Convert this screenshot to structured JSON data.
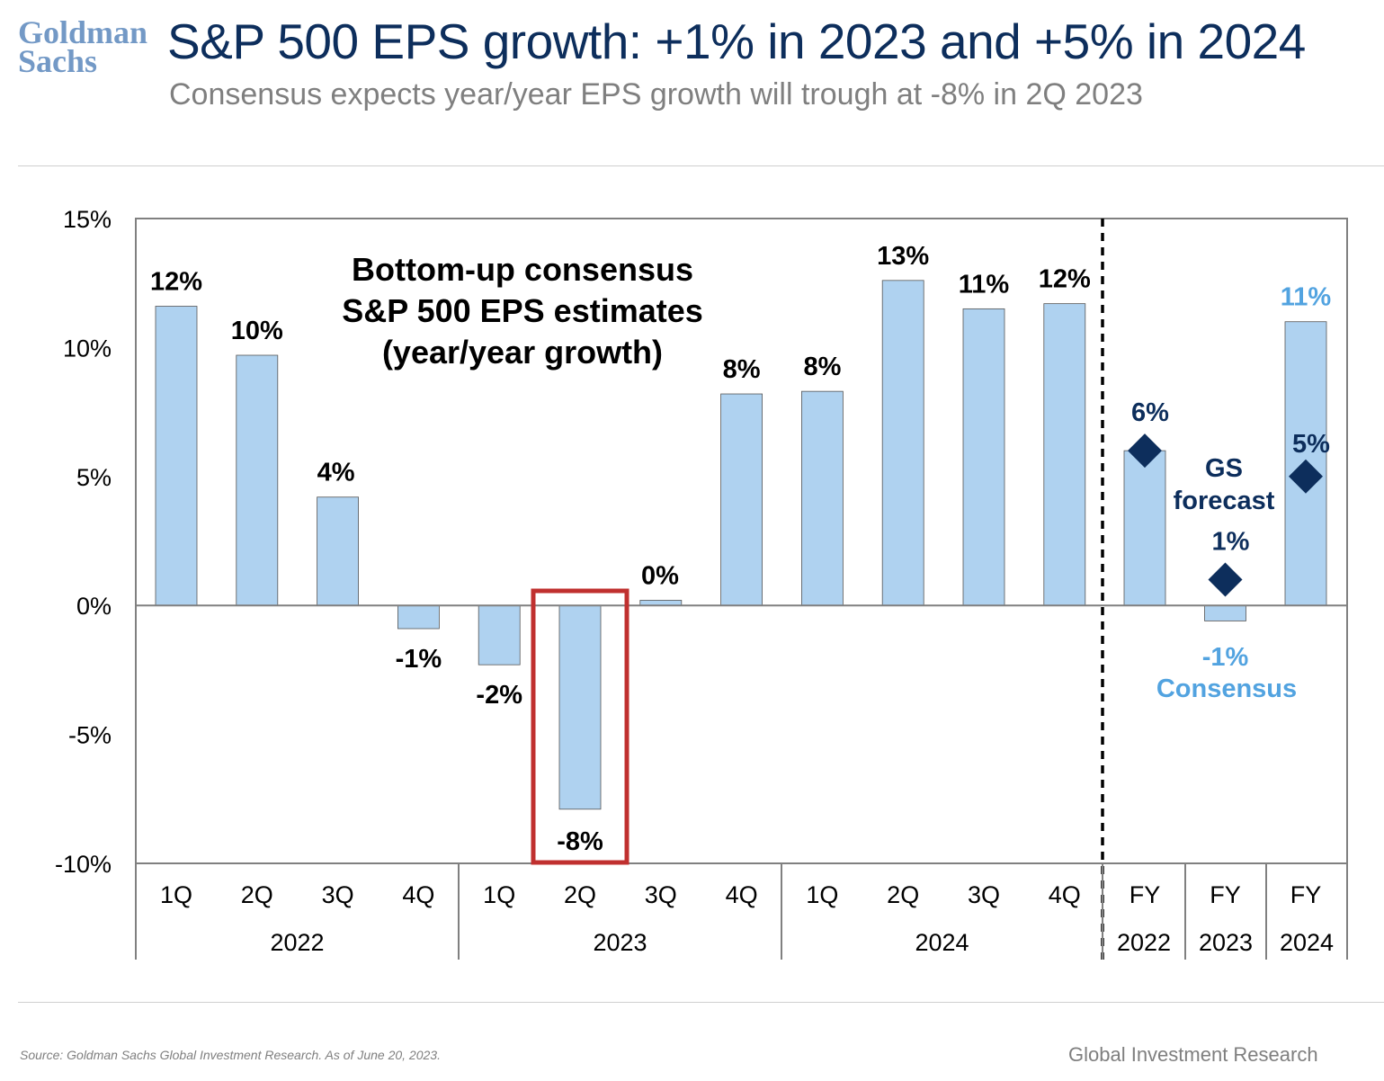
{
  "header": {
    "logo_line1": "Goldman",
    "logo_line2": "Sachs",
    "title": "S&P 500 EPS growth: +1% in 2023 and +5% in 2024",
    "subtitle": "Consensus expects year/year EPS growth will trough at -8% in 2Q 2023"
  },
  "footer": {
    "source": "Source: Goldman Sachs Global Investment Research. As of June 20, 2023.",
    "brand": "Global Investment Research"
  },
  "colors": {
    "bar": "#afd2f0",
    "bar_stroke": "#555555",
    "navy": "#0d2e5c",
    "consensus_blue": "#52a3e0",
    "highlight": "#c0302f",
    "axis": "#808080"
  },
  "chart_data": {
    "type": "bar",
    "title": "Bottom-up consensus S&P 500 EPS estimates (year/year growth)",
    "annotation_lines": [
      "Bottom-up consensus",
      "S&P 500 EPS estimates",
      "(year/year growth)"
    ],
    "ylim": [
      -10,
      15
    ],
    "yticks": [
      15,
      10,
      5,
      0,
      -5,
      -10
    ],
    "ytick_labels": [
      "15%",
      "10%",
      "5%",
      "0%",
      "-5%",
      "-10%"
    ],
    "categories": [
      "1Q",
      "2Q",
      "3Q",
      "4Q",
      "1Q",
      "2Q",
      "3Q",
      "4Q",
      "1Q",
      "2Q",
      "3Q",
      "4Q",
      "FY",
      "FY",
      "FY"
    ],
    "groups": [
      {
        "label": "2022",
        "count": 4
      },
      {
        "label": "2023",
        "count": 4
      },
      {
        "label": "2024",
        "count": 4
      },
      {
        "label": "2022",
        "count": 1
      },
      {
        "label": "2023",
        "count": 1
      },
      {
        "label": "2024",
        "count": 1
      }
    ],
    "series": [
      {
        "name": "Consensus",
        "values": [
          11.6,
          9.7,
          4.2,
          -0.9,
          -2.3,
          -7.9,
          0.2,
          8.2,
          8.3,
          12.6,
          11.5,
          11.7,
          6.0,
          -0.6,
          11.0
        ],
        "labels": [
          "12%",
          "10%",
          "4%",
          "-1%",
          "-2%",
          "-8%",
          "0%",
          "8%",
          "8%",
          "13%",
          "11%",
          "12%",
          "6%",
          "-1%",
          "11%"
        ]
      },
      {
        "name": "GS forecast",
        "values": [
          null,
          null,
          null,
          null,
          null,
          null,
          null,
          null,
          null,
          null,
          null,
          null,
          6.0,
          1.0,
          5.0
        ],
        "labels": [
          null,
          null,
          null,
          null,
          null,
          null,
          null,
          null,
          null,
          null,
          null,
          null,
          "6%",
          "1%",
          "5%"
        ]
      }
    ],
    "legend": {
      "gs_forecast_line1": "GS",
      "gs_forecast_line2": "forecast",
      "consensus": "Consensus"
    },
    "highlight_index": 5,
    "divider_after_index": 11
  }
}
